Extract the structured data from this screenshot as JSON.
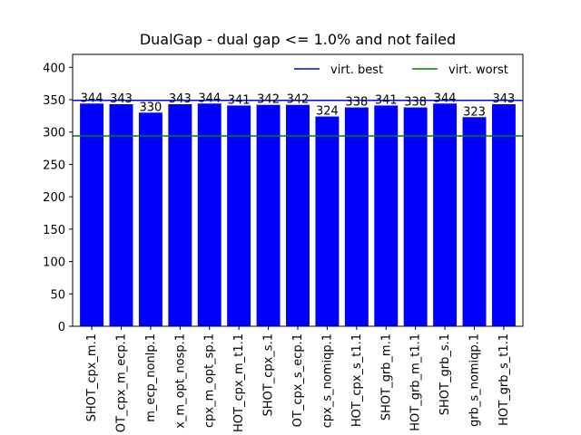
{
  "chart_data": {
    "type": "bar",
    "title": "DualGap - dual gap <= 1.0% and not failed",
    "xlabel": "",
    "ylabel": "",
    "ylim": [
      0,
      420
    ],
    "yticks": [
      0,
      50,
      100,
      150,
      200,
      250,
      300,
      350,
      400
    ],
    "grid": false,
    "legend_position": "top-right",
    "categories": [
      "SHOT_cpx_m.1",
      "OT_cpx_m_ecp.1",
      "m_ecp_nonlp.1",
      "x_m_opt_nosp.1",
      "cpx_m_opt_sp.1",
      "HOT_cpx_m_t1.1",
      "SHOT_cpx_s.1",
      "OT_cpx_s_ecp.1",
      "cpx_s_nomiqp.1",
      "HOT_cpx_s_t1.1",
      "SHOT_grb_m.1",
      "HOT_grb_m_t1.1",
      "SHOT_grb_s.1",
      "grb_s_nomiqp.1",
      "HOT_grb_s_t1.1"
    ],
    "values": [
      344,
      343,
      330,
      343,
      344,
      341,
      342,
      342,
      324,
      338,
      341,
      338,
      344,
      323,
      343
    ],
    "data_labels": [
      "344",
      "343",
      "330",
      "343",
      "344",
      "341",
      "342",
      "342",
      "324",
      "338",
      "341",
      "338",
      "344",
      "323",
      "343"
    ],
    "bar_color": "#0000ff",
    "reference_lines": [
      {
        "name": "virt. best",
        "value": 349,
        "color": "#0000ff"
      },
      {
        "name": "virt. worst",
        "value": 294,
        "color": "#008000"
      }
    ]
  }
}
